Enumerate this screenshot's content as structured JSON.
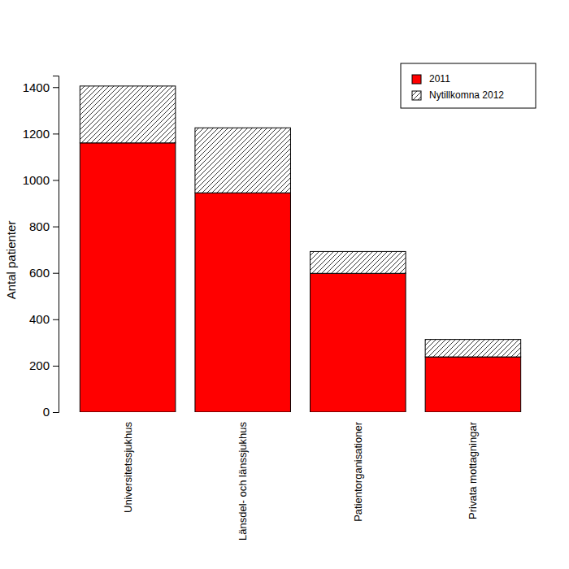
{
  "chart_data": {
    "type": "bar",
    "stacked": true,
    "y_label": "Antal patienter",
    "categories": [
      "Universitetssjukhus",
      "Länsdel- och länssjukhus",
      "Patientorganisationer",
      "Privata mottagningar"
    ],
    "series": [
      {
        "name": "2011",
        "color": "#ff0000",
        "values": [
          1160,
          945,
          598,
          238
        ]
      },
      {
        "name": "Nytillkomna 2012",
        "color": "#000000",
        "values": [
          245,
          280,
          94,
          75
        ]
      }
    ],
    "ylim": [
      0,
      1450
    ],
    "yticks": [
      0,
      200,
      400,
      600,
      800,
      1000,
      1200,
      1400
    ],
    "legend": "top-right"
  }
}
